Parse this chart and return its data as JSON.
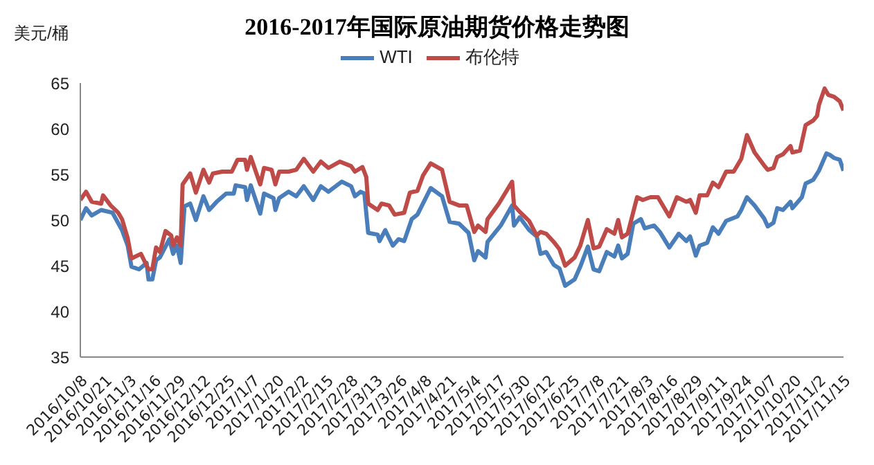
{
  "chart_data": {
    "type": "line",
    "title": "2016-2017年国际原油期货价格走势图",
    "ylabel": "美元/桶",
    "legend": "top",
    "grid": false,
    "xlim": [
      "2016-10-08",
      "2017-11-15"
    ],
    "xticks": [
      {
        "value": "2016-10-08",
        "label": "2016/10/8"
      },
      {
        "value": "2016-10-21",
        "label": "2016/10/21"
      },
      {
        "value": "2016-11-03",
        "label": "2016/11/3"
      },
      {
        "value": "2016-11-16",
        "label": "2016/11/16"
      },
      {
        "value": "2016-11-29",
        "label": "2016/11/29"
      },
      {
        "value": "2016-12-12",
        "label": "2016/12/12"
      },
      {
        "value": "2016-12-25",
        "label": "2016/12/25"
      },
      {
        "value": "2017-01-07",
        "label": "2017/1/7"
      },
      {
        "value": "2017-01-20",
        "label": "2017/1/20"
      },
      {
        "value": "2017-02-02",
        "label": "2017/2/2"
      },
      {
        "value": "2017-02-15",
        "label": "2017/2/15"
      },
      {
        "value": "2017-02-28",
        "label": "2017/2/28"
      },
      {
        "value": "2017-03-13",
        "label": "2017/3/13"
      },
      {
        "value": "2017-03-26",
        "label": "2017/3/26"
      },
      {
        "value": "2017-04-08",
        "label": "2017/4/8"
      },
      {
        "value": "2017-04-21",
        "label": "2017/4/21"
      },
      {
        "value": "2017-05-04",
        "label": "2017/5/4"
      },
      {
        "value": "2017-05-17",
        "label": "2017/5/17"
      },
      {
        "value": "2017-05-30",
        "label": "2017/5/30"
      },
      {
        "value": "2017-06-12",
        "label": "2017/6/12"
      },
      {
        "value": "2017-06-25",
        "label": "2017/6/25"
      },
      {
        "value": "2017-07-08",
        "label": "2017/7/8"
      },
      {
        "value": "2017-07-21",
        "label": "2017/7/21"
      },
      {
        "value": "2017-08-03",
        "label": "2017/8/3"
      },
      {
        "value": "2017-08-16",
        "label": "2017/8/16"
      },
      {
        "value": "2017-08-29",
        "label": "2017/8/29"
      },
      {
        "value": "2017-09-11",
        "label": "2017/9/11"
      },
      {
        "value": "2017-09-24",
        "label": "2017/9/24"
      },
      {
        "value": "2017-10-07",
        "label": "2017/10/7"
      },
      {
        "value": "2017-10-20",
        "label": "2017/10/20"
      },
      {
        "value": "2017-11-02",
        "label": "2017/11/2"
      },
      {
        "value": "2017-11-15",
        "label": "2017/11/15"
      }
    ],
    "ylim": [
      35,
      65
    ],
    "yticks": [
      35,
      40,
      45,
      50,
      55,
      60,
      65
    ],
    "series": [
      {
        "name": "WTI",
        "color": "#4a7ebb",
        "x": [
          "2016-10-08",
          "2016-10-11",
          "2016-10-14",
          "2016-10-19",
          "2016-10-25",
          "2016-10-30",
          "2016-11-02",
          "2016-11-04",
          "2016-11-08",
          "2016-11-12",
          "2016-11-13",
          "2016-11-15",
          "2016-11-17",
          "2016-11-19",
          "2016-11-24",
          "2016-11-26",
          "2016-11-28",
          "2016-11-30",
          "2016-12-02",
          "2016-12-05",
          "2016-12-08",
          "2016-12-12",
          "2016-12-15",
          "2016-12-19",
          "2016-12-24",
          "2016-12-28",
          "2016-12-29",
          "2017-01-03",
          "2017-01-04",
          "2017-01-06",
          "2017-01-11",
          "2017-01-13",
          "2017-01-18",
          "2017-01-19",
          "2017-01-21",
          "2017-01-26",
          "2017-01-30",
          "2017-02-03",
          "2017-02-08",
          "2017-02-12",
          "2017-02-16",
          "2017-02-23",
          "2017-02-28",
          "2017-03-02",
          "2017-03-05",
          "2017-03-07",
          "2017-03-09",
          "2017-03-14",
          "2017-03-15",
          "2017-03-18",
          "2017-03-22",
          "2017-03-25",
          "2017-03-28",
          "2017-04-01",
          "2017-04-04",
          "2017-04-11",
          "2017-04-17",
          "2017-04-21",
          "2017-04-26",
          "2017-05-01",
          "2017-05-04",
          "2017-05-06",
          "2017-05-10",
          "2017-05-11",
          "2017-05-18",
          "2017-05-24",
          "2017-05-25",
          "2017-05-28",
          "2017-06-02",
          "2017-06-06",
          "2017-06-08",
          "2017-06-11",
          "2017-06-15",
          "2017-06-18",
          "2017-06-21",
          "2017-06-26",
          "2017-06-29",
          "2017-07-03",
          "2017-07-06",
          "2017-07-09",
          "2017-07-13",
          "2017-07-17",
          "2017-07-19",
          "2017-07-21",
          "2017-07-24",
          "2017-07-27",
          "2017-07-31",
          "2017-08-02",
          "2017-08-07",
          "2017-08-10",
          "2017-08-15",
          "2017-08-20",
          "2017-08-24",
          "2017-08-26",
          "2017-08-29",
          "2017-08-31",
          "2017-09-04",
          "2017-09-07",
          "2017-09-10",
          "2017-09-14",
          "2017-09-20",
          "2017-09-22",
          "2017-09-25",
          "2017-09-29",
          "2017-10-04",
          "2017-10-06",
          "2017-10-09",
          "2017-10-11",
          "2017-10-14",
          "2017-10-18",
          "2017-10-19",
          "2017-10-24",
          "2017-10-26",
          "2017-10-30",
          "2017-11-02",
          "2017-11-06",
          "2017-11-08",
          "2017-11-10",
          "2017-11-13",
          "2017-11-15"
        ],
        "values": [
          50.0,
          51.3,
          50.5,
          51.1,
          50.8,
          48.9,
          47.2,
          44.9,
          44.6,
          45.3,
          43.5,
          43.5,
          45.6,
          45.9,
          47.9,
          46.3,
          47.2,
          45.3,
          51.5,
          51.8,
          50.0,
          52.6,
          51.1,
          52.0,
          52.9,
          52.9,
          53.8,
          53.6,
          52.2,
          53.8,
          50.7,
          52.9,
          52.4,
          51.1,
          52.4,
          53.1,
          52.6,
          53.7,
          52.2,
          53.7,
          53.1,
          54.2,
          53.7,
          52.6,
          53.1,
          52.9,
          48.6,
          48.4,
          47.7,
          48.9,
          47.2,
          47.9,
          47.7,
          50.1,
          50.6,
          53.5,
          52.6,
          49.8,
          49.6,
          48.6,
          45.6,
          46.6,
          45.9,
          47.6,
          49.4,
          51.6,
          49.4,
          50.3,
          48.9,
          48.2,
          46.3,
          46.5,
          45.1,
          44.7,
          42.8,
          43.5,
          44.9,
          47.1,
          44.6,
          44.4,
          46.5,
          46.0,
          47.2,
          45.8,
          46.3,
          49.6,
          50.1,
          49.1,
          49.4,
          48.7,
          47.0,
          48.5,
          47.7,
          48.2,
          46.1,
          47.2,
          47.5,
          49.2,
          48.5,
          49.9,
          50.4,
          51.1,
          52.5,
          51.6,
          50.2,
          49.3,
          49.7,
          51.3,
          51.1,
          52.0,
          51.3,
          52.5,
          54.0,
          54.4,
          55.4,
          57.3,
          57.1,
          56.8,
          56.6,
          55.4
        ]
      },
      {
        "name": "布伦特",
        "color": "#be4b48",
        "x": [
          "2016-10-08",
          "2016-10-11",
          "2016-10-14",
          "2016-10-19",
          "2016-10-20",
          "2016-10-24",
          "2016-10-28",
          "2016-10-30",
          "2016-11-02",
          "2016-11-04",
          "2016-11-09",
          "2016-11-13",
          "2016-11-15",
          "2016-11-17",
          "2016-11-19",
          "2016-11-22",
          "2016-11-25",
          "2016-11-26",
          "2016-11-28",
          "2016-11-30",
          "2016-12-01",
          "2016-12-05",
          "2016-12-08",
          "2016-12-12",
          "2016-12-15",
          "2016-12-17",
          "2016-12-22",
          "2016-12-27",
          "2016-12-30",
          "2017-01-03",
          "2017-01-04",
          "2017-01-06",
          "2017-01-11",
          "2017-01-13",
          "2017-01-17",
          "2017-01-19",
          "2017-01-21",
          "2017-01-26",
          "2017-01-30",
          "2017-02-03",
          "2017-02-08",
          "2017-02-12",
          "2017-02-16",
          "2017-02-22",
          "2017-02-28",
          "2017-03-02",
          "2017-03-06",
          "2017-03-08",
          "2017-03-09",
          "2017-03-14",
          "2017-03-16",
          "2017-03-20",
          "2017-03-23",
          "2017-03-28",
          "2017-03-31",
          "2017-04-04",
          "2017-04-07",
          "2017-04-11",
          "2017-04-17",
          "2017-04-21",
          "2017-04-26",
          "2017-04-30",
          "2017-05-04",
          "2017-05-06",
          "2017-05-10",
          "2017-05-11",
          "2017-05-17",
          "2017-05-24",
          "2017-05-25",
          "2017-05-28",
          "2017-06-02",
          "2017-06-06",
          "2017-06-08",
          "2017-06-11",
          "2017-06-15",
          "2017-06-18",
          "2017-06-21",
          "2017-06-26",
          "2017-06-29",
          "2017-07-03",
          "2017-07-06",
          "2017-07-09",
          "2017-07-13",
          "2017-07-17",
          "2017-07-19",
          "2017-07-21",
          "2017-07-24",
          "2017-07-29",
          "2017-08-01",
          "2017-08-05",
          "2017-08-09",
          "2017-08-15",
          "2017-08-19",
          "2017-08-24",
          "2017-08-26",
          "2017-08-29",
          "2017-08-31",
          "2017-09-04",
          "2017-09-07",
          "2017-09-10",
          "2017-09-14",
          "2017-09-18",
          "2017-09-22",
          "2017-09-25",
          "2017-09-29",
          "2017-10-04",
          "2017-10-06",
          "2017-10-09",
          "2017-10-11",
          "2017-10-14",
          "2017-10-18",
          "2017-10-19",
          "2017-10-23",
          "2017-10-26",
          "2017-10-30",
          "2017-11-01",
          "2017-11-02",
          "2017-11-05",
          "2017-11-07",
          "2017-11-10",
          "2017-11-13",
          "2017-11-15"
        ],
        "values": [
          52.2,
          53.1,
          52.0,
          51.8,
          52.7,
          51.6,
          50.8,
          50.1,
          48.0,
          45.8,
          46.3,
          44.6,
          44.6,
          47.0,
          46.5,
          48.8,
          48.3,
          47.2,
          48.1,
          47.2,
          53.9,
          55.1,
          53.0,
          55.5,
          54.1,
          55.1,
          55.3,
          55.3,
          56.6,
          56.6,
          55.5,
          56.9,
          53.9,
          55.7,
          55.5,
          53.9,
          55.3,
          55.3,
          55.5,
          56.7,
          55.3,
          56.4,
          55.7,
          56.4,
          55.9,
          55.3,
          55.8,
          54.7,
          51.8,
          51.1,
          51.8,
          51.6,
          50.6,
          50.8,
          53.0,
          53.2,
          54.9,
          56.2,
          55.5,
          52.0,
          51.6,
          51.6,
          48.7,
          49.4,
          48.7,
          50.1,
          51.8,
          54.2,
          51.6,
          50.9,
          49.9,
          48.3,
          48.7,
          48.5,
          47.6,
          46.8,
          45.0,
          45.9,
          47.2,
          50.0,
          46.9,
          47.1,
          49.0,
          48.5,
          50.0,
          48.1,
          48.5,
          52.5,
          52.2,
          52.5,
          52.5,
          50.4,
          52.5,
          52.0,
          52.2,
          50.8,
          52.7,
          52.7,
          54.1,
          53.6,
          55.3,
          55.3,
          56.7,
          59.3,
          57.4,
          56.0,
          55.5,
          55.7,
          56.9,
          57.2,
          58.1,
          57.4,
          57.6,
          60.4,
          60.9,
          61.4,
          62.6,
          64.4,
          63.7,
          63.5,
          63.0,
          62.0
        ]
      }
    ]
  }
}
